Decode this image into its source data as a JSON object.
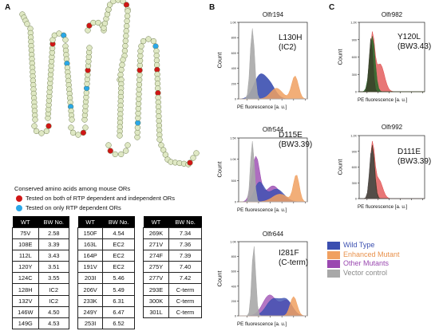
{
  "panel_a": {
    "letter": "A",
    "legend_title": "Conserved amino acids among mouse ORs",
    "legend_red": "Tested on both of RTP dependent and independent ORs",
    "legend_blue": "Tested on only RTP dependent ORs",
    "colors": {
      "red": "#d01616",
      "blue": "#2aa7e8",
      "bead": "#dfe8c4",
      "bead_border": "#6c7a4a"
    },
    "table_headers": [
      "WT",
      "BW No."
    ],
    "table1": [
      [
        "75V",
        "2.58"
      ],
      [
        "108E",
        "3.39"
      ],
      [
        "112L",
        "3.43"
      ],
      [
        "120Y",
        "3.51"
      ],
      [
        "124C",
        "3.55"
      ],
      [
        "128H",
        "IC2"
      ],
      [
        "132V",
        "IC2"
      ],
      [
        "146W",
        "4.50"
      ],
      [
        "149G",
        "4.53"
      ]
    ],
    "table2": [
      [
        "150F",
        "4.54"
      ],
      [
        "163L",
        "EC2"
      ],
      [
        "164P",
        "EC2"
      ],
      [
        "191V",
        "EC2"
      ],
      [
        "203I",
        "5.46"
      ],
      [
        "206V",
        "5.49"
      ],
      [
        "233K",
        "6.31"
      ],
      [
        "249Y",
        "6.47"
      ],
      [
        "253I",
        "6.52"
      ]
    ],
    "table3": [
      [
        "269K",
        "7.34"
      ],
      [
        "271V",
        "7.36"
      ],
      [
        "274F",
        "7.39"
      ],
      [
        "275Y",
        "7.40"
      ],
      [
        "277V",
        "7.42"
      ],
      [
        "293E",
        "C-term"
      ],
      [
        "300K",
        "C-term"
      ],
      [
        "301L",
        "C-term"
      ]
    ]
  },
  "panel_b": {
    "letter": "B"
  },
  "panel_c": {
    "letter": "C"
  },
  "flow": {
    "ylabel": "Count",
    "xlabel": "PE fluorescence [a. u.]",
    "colors": {
      "wild": "#3b4fb0",
      "enhanced": "#f0a060",
      "other": "#9a48b0",
      "vector": "#a8a8a8",
      "c_red": "#e04848",
      "c_dark": "#3a3a2a",
      "c_green": "#2e6a2e"
    },
    "plots": [
      {
        "title": "Olfr194",
        "annotation": [
          "L130H",
          "(IC2)"
        ],
        "yticks": [
          "1.0K",
          "800",
          "600",
          "400",
          "200",
          "0"
        ]
      },
      {
        "title": "Olfr544",
        "annotation": [
          "D115E",
          "(BW3.39)"
        ],
        "yticks": [
          "1.5K",
          "1.0K",
          "500",
          "0"
        ]
      },
      {
        "title": "Olfr644",
        "annotation": [
          "I281F",
          "(C-term)"
        ],
        "yticks": [
          "1.0K",
          "800",
          "600",
          "400",
          "200",
          "0"
        ]
      },
      {
        "title": "Olfr982",
        "annotation": [
          "Y120L",
          "(BW3.43)"
        ],
        "yticks": [
          "1.2K",
          "900",
          "600",
          "300",
          "0"
        ]
      },
      {
        "title": "Olfr992",
        "annotation": [
          "D111E",
          "(BW3.39)"
        ],
        "yticks": [
          "1.2K",
          "900",
          "600",
          "300",
          "0"
        ]
      }
    ],
    "legend": [
      "Wild Type",
      "Enhanced Mutant",
      "Other Mutants",
      "Vector control"
    ]
  }
}
